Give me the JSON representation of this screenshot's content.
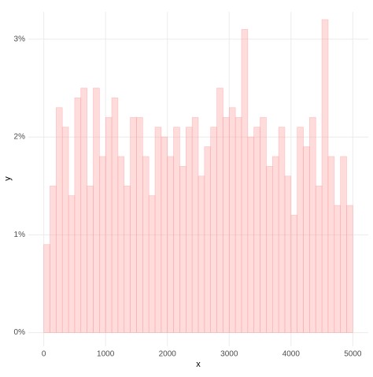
{
  "chart_data": {
    "type": "histogram",
    "x_label": "x",
    "y_label": "y",
    "bins": [
      0,
      100,
      200,
      300,
      400,
      500,
      600,
      700,
      800,
      900,
      1000,
      1100,
      1200,
      1300,
      1400,
      1500,
      1600,
      1700,
      1800,
      1900,
      2000,
      2100,
      2200,
      2300,
      2400,
      2500,
      2600,
      2700,
      2800,
      2900,
      3000,
      3100,
      3200,
      3300,
      3400,
      3500,
      3600,
      3700,
      3800,
      3900,
      4000,
      4100,
      4200,
      4300,
      4400,
      4500,
      4600,
      4700,
      4800,
      4900,
      5000
    ],
    "values": [
      0.9,
      1.5,
      2.3,
      2.1,
      1.4,
      2.4,
      2.5,
      1.5,
      2.5,
      1.8,
      2.2,
      2.4,
      1.8,
      1.5,
      2.2,
      2.2,
      1.8,
      1.4,
      2.1,
      2.0,
      1.8,
      2.1,
      1.7,
      2.1,
      2.2,
      1.6,
      1.9,
      2.1,
      2.5,
      2.2,
      2.3,
      2.2,
      3.1,
      2.0,
      2.1,
      2.2,
      1.7,
      1.8,
      2.1,
      1.6,
      1.2,
      2.1,
      1.9,
      2.2,
      1.5,
      3.2,
      1.8,
      1.3,
      1.8,
      1.3
    ],
    "color": "#ff9a9a",
    "xlim": [
      -250,
      5250
    ],
    "ylim": [
      -0.14,
      3.28
    ],
    "xticks": [
      0,
      1000,
      2000,
      3000,
      4000,
      5000
    ],
    "yticks": [
      {
        "value": 0,
        "label": "0%"
      },
      {
        "value": 1,
        "label": "1%"
      },
      {
        "value": 2,
        "label": "2%"
      },
      {
        "value": 3,
        "label": "3%"
      }
    ],
    "grid": true
  }
}
